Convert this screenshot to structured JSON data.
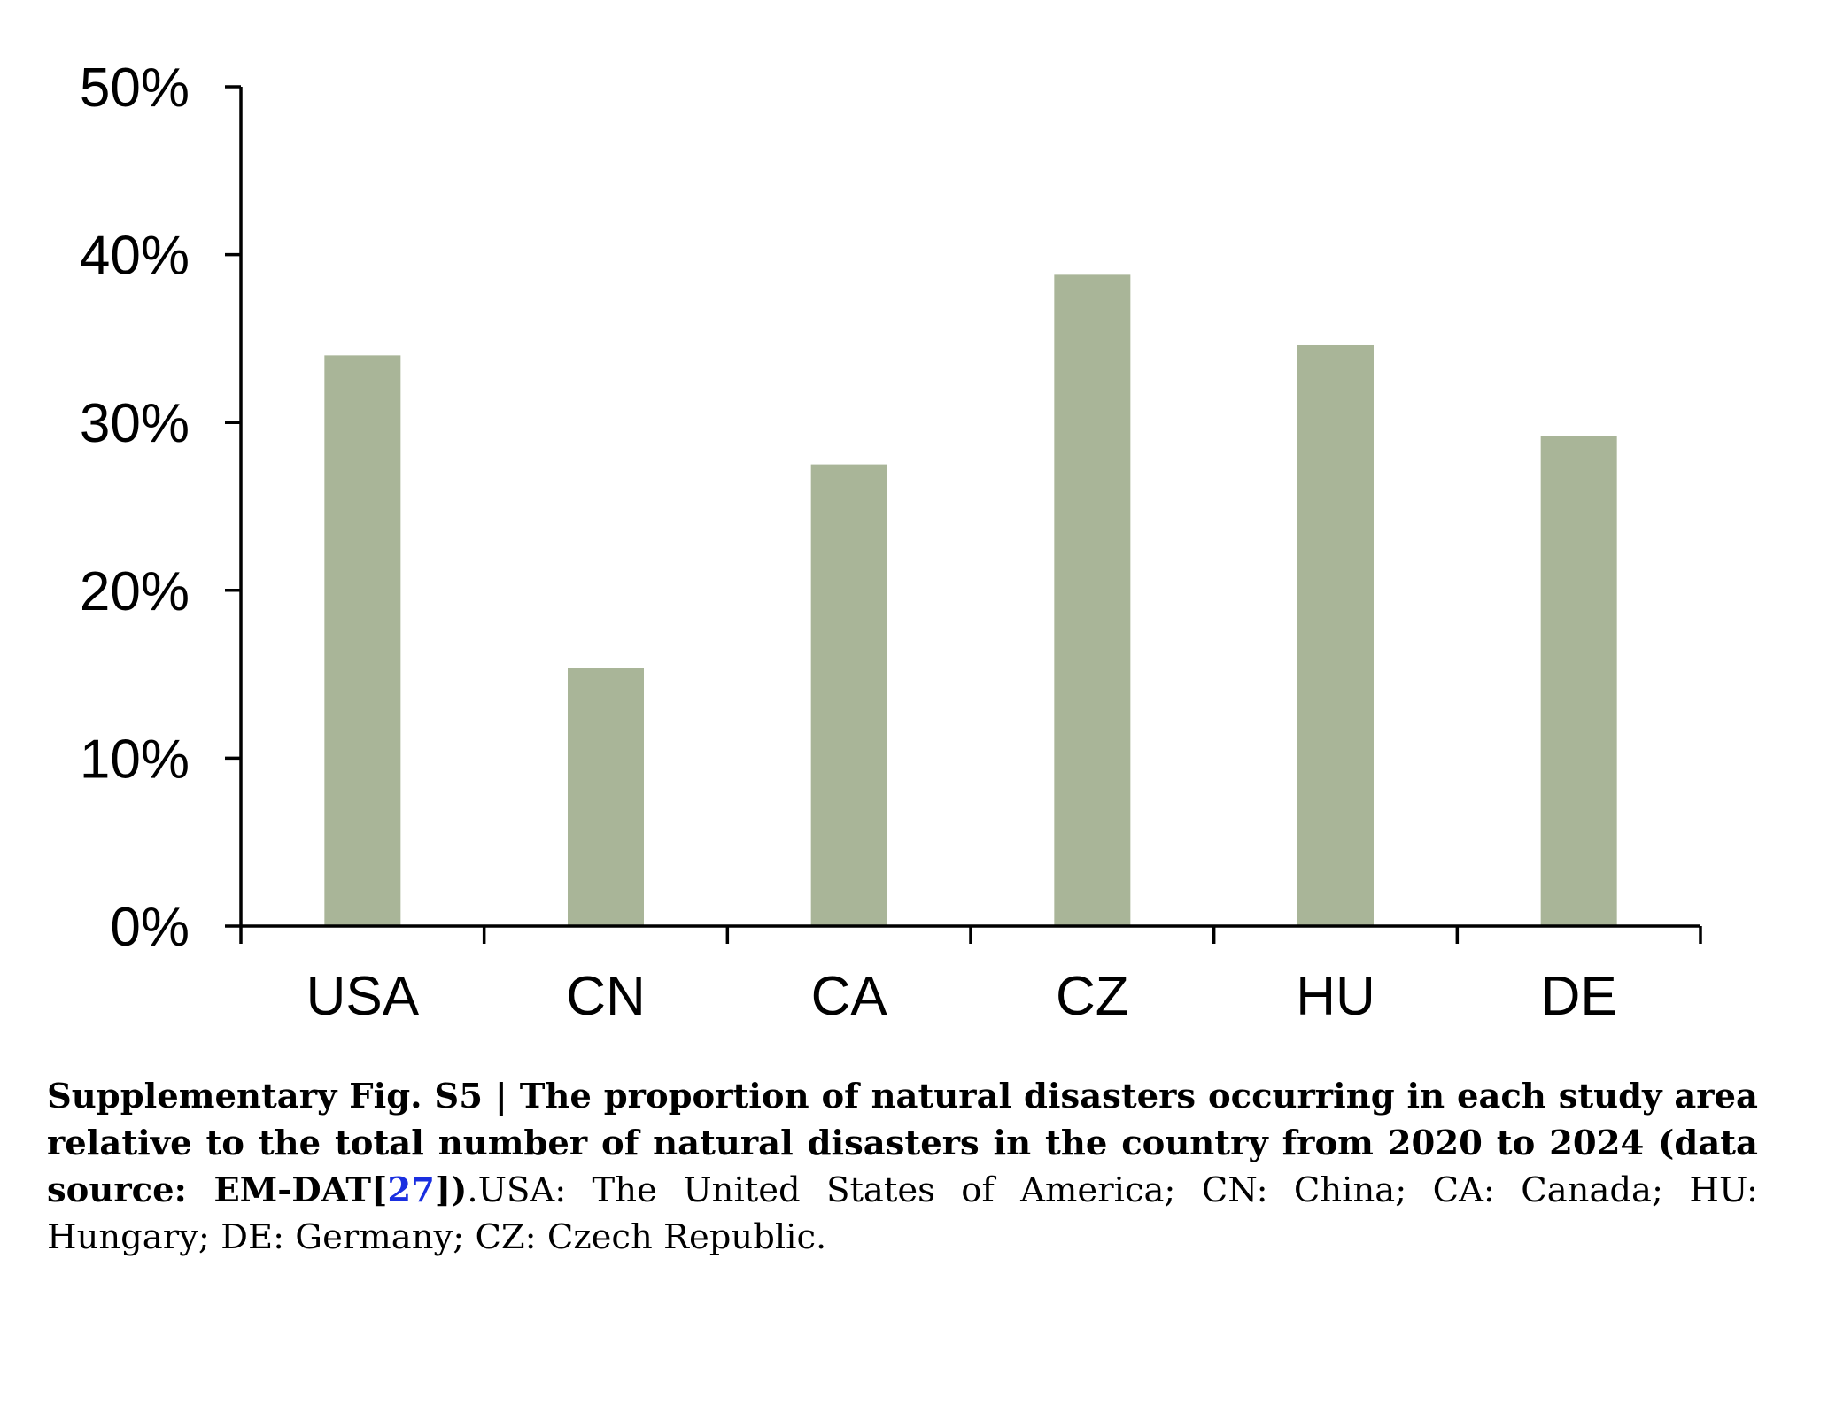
{
  "chart_data": {
    "type": "bar",
    "categories": [
      "USA",
      "CN",
      "CA",
      "CZ",
      "HU",
      "DE"
    ],
    "values": [
      34.0,
      15.4,
      27.5,
      38.8,
      34.6,
      29.2
    ],
    "ylim": [
      0,
      50
    ],
    "yticks": [
      0,
      10,
      20,
      30,
      40,
      50
    ],
    "ytick_labels": [
      "0%",
      "10%",
      "20%",
      "30%",
      "40%",
      "50%"
    ],
    "y_unit": "%",
    "bar_color": "#a9b598",
    "grid": false,
    "legend": "none",
    "title": "",
    "xlabel": "",
    "ylabel": ""
  },
  "caption": {
    "label": "Supplementary Fig. S5",
    "separator": " | ",
    "title_part": "The proportion of natural disasters occurring in each study area relative to the total number of natural disasters in the country from 2020 to 2024 (data source: EM-DAT[",
    "ref": "27",
    "title_end": "])",
    "body": ".USA: The United States of America; CN: China; CA: Canada; HU: Hungary; DE: Germany; CZ: Czech Republic."
  },
  "colors": {
    "link": "#1a2fe0"
  }
}
